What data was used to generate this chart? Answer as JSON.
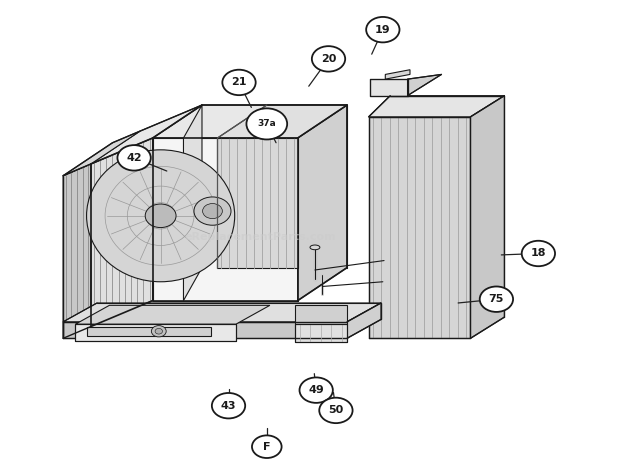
{
  "background_color": "#ffffff",
  "fig_width": 6.2,
  "fig_height": 4.74,
  "dpi": 100,
  "watermark": "eReplacementParts.com",
  "line_color": "#1a1a1a",
  "gray_dark": "#888888",
  "gray_mid": "#aaaaaa",
  "gray_light": "#cccccc",
  "gray_fill": "#c8c8c8",
  "gray_fill2": "#d8d8d8",
  "gray_fill3": "#e8e8e8",
  "gray_white": "#f0f0f0",
  "callout_positions": {
    "19": [
      0.618,
      0.94,
      0.6,
      0.888
    ],
    "20": [
      0.53,
      0.878,
      0.498,
      0.82
    ],
    "21": [
      0.385,
      0.828,
      0.405,
      0.775
    ],
    "37a": [
      0.43,
      0.74,
      0.445,
      0.7
    ],
    "42": [
      0.215,
      0.668,
      0.268,
      0.64
    ],
    "18": [
      0.87,
      0.465,
      0.81,
      0.462
    ],
    "75": [
      0.802,
      0.368,
      0.74,
      0.36
    ],
    "43": [
      0.368,
      0.142,
      0.368,
      0.178
    ],
    "49": [
      0.51,
      0.175,
      0.507,
      0.21
    ],
    "50": [
      0.542,
      0.132,
      0.538,
      0.17
    ],
    "F": [
      0.43,
      0.055,
      0.43,
      0.095
    ]
  }
}
